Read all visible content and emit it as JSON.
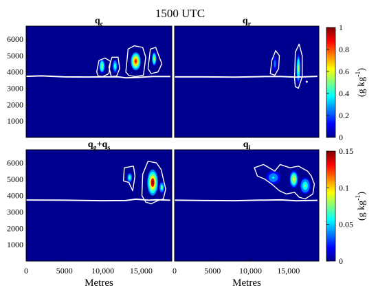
{
  "figure": {
    "title": "1500 UTC"
  },
  "chart_data": [
    {
      "type": "heatmap",
      "panel": "top-left",
      "title_main": "q",
      "title_sub": "c",
      "xlim": [
        0,
        19000
      ],
      "ylim": [
        0,
        6800
      ],
      "xticks": [],
      "yticks": [
        "6000",
        "5000",
        "4000",
        "3000",
        "2000",
        "1000"
      ],
      "ytick_values": [
        6000,
        5000,
        4000,
        3000,
        2000,
        1000
      ],
      "background_color": "#00008f",
      "colorscale": "top",
      "melting_level": [
        [
          0,
          3730
        ],
        [
          2000,
          3760
        ],
        [
          5000,
          3700
        ],
        [
          8000,
          3690
        ],
        [
          10000,
          3700
        ],
        [
          12000,
          3700
        ],
        [
          13000,
          3640
        ],
        [
          14500,
          3660
        ],
        [
          16500,
          3720
        ],
        [
          18800,
          3720
        ]
      ],
      "contours": [
        [
          [
            9200,
            4000
          ],
          [
            9500,
            4700
          ],
          [
            10300,
            4850
          ],
          [
            11000,
            4650
          ],
          [
            10800,
            3900
          ],
          [
            10000,
            3720
          ],
          [
            9400,
            3750
          ]
        ],
        [
          [
            10800,
            4300
          ],
          [
            11200,
            4900
          ],
          [
            12000,
            4900
          ],
          [
            12200,
            4200
          ],
          [
            11800,
            3750
          ],
          [
            11100,
            3720
          ]
        ],
        [
          [
            13000,
            4000
          ],
          [
            13300,
            5400
          ],
          [
            14100,
            5600
          ],
          [
            15200,
            5500
          ],
          [
            15600,
            4900
          ],
          [
            15300,
            3800
          ],
          [
            14300,
            3720
          ],
          [
            13400,
            3780
          ]
        ],
        [
          [
            15900,
            4200
          ],
          [
            16200,
            5400
          ],
          [
            16900,
            5500
          ],
          [
            17300,
            5000
          ],
          [
            17700,
            4500
          ],
          [
            17200,
            4000
          ],
          [
            16300,
            3900
          ]
        ]
      ],
      "blobs": [
        {
          "x": 9900,
          "y": 4350,
          "rx": 400,
          "ry": 450,
          "value": 0.5
        },
        {
          "x": 11600,
          "y": 4350,
          "rx": 320,
          "ry": 400,
          "value": 0.45
        },
        {
          "x": 14300,
          "y": 4650,
          "rx": 650,
          "ry": 550,
          "value": 0.9
        },
        {
          "x": 16700,
          "y": 4800,
          "rx": 320,
          "ry": 450,
          "value": 0.55
        }
      ]
    },
    {
      "type": "heatmap",
      "panel": "top-right",
      "title_main": "q",
      "title_sub": "r",
      "xlim": [
        0,
        19000
      ],
      "ylim": [
        0,
        6800
      ],
      "xticks": [],
      "yticks": [],
      "background_color": "#00008f",
      "colorscale": "top",
      "melting_level": [
        [
          0,
          3700
        ],
        [
          4000,
          3700
        ],
        [
          8000,
          3680
        ],
        [
          12000,
          3720
        ],
        [
          14000,
          3720
        ],
        [
          16000,
          3680
        ],
        [
          18800,
          3730
        ]
      ],
      "contours": [
        [
          [
            12600,
            3900
          ],
          [
            12800,
            4700
          ],
          [
            13300,
            5300
          ],
          [
            13800,
            5000
          ],
          [
            13700,
            4200
          ],
          [
            13200,
            3800
          ]
        ],
        [
          [
            15800,
            3600
          ],
          [
            15900,
            5200
          ],
          [
            16400,
            5700
          ],
          [
            16800,
            5000
          ],
          [
            16800,
            3700
          ],
          [
            16300,
            3000
          ],
          [
            15900,
            3100
          ]
        ]
      ],
      "blobs": [
        {
          "x": 13200,
          "y": 4500,
          "rx": 250,
          "ry": 450,
          "value": 0.2
        },
        {
          "x": 16300,
          "y": 4200,
          "rx": 280,
          "ry": 900,
          "value": 0.55
        }
      ],
      "dots": [
        [
          17400,
          3400
        ]
      ]
    },
    {
      "type": "heatmap",
      "panel": "bottom-left",
      "title_main": "q",
      "title_sub1": "g",
      "title_plus": "+q",
      "title_sub2": "s",
      "xlim": [
        0,
        19000
      ],
      "ylim": [
        0,
        6800
      ],
      "xticks": [
        "0",
        "5000",
        "10,000",
        "15,000"
      ],
      "xtick_values": [
        0,
        5000,
        10000,
        15000
      ],
      "yticks": [
        "6000",
        "5000",
        "4000",
        "3000",
        "2000",
        "1000"
      ],
      "ytick_values": [
        6000,
        5000,
        4000,
        3000,
        2000,
        1000
      ],
      "xlabel": "Metres",
      "background_color": "#00008f",
      "colorscale": "bottom",
      "melting_level": [
        [
          0,
          3730
        ],
        [
          5000,
          3720
        ],
        [
          10000,
          3690
        ],
        [
          13000,
          3700
        ],
        [
          14300,
          3780
        ],
        [
          16000,
          3720
        ],
        [
          17000,
          3750
        ],
        [
          18800,
          3720
        ]
      ],
      "contours": [
        [
          [
            12700,
            4900
          ],
          [
            12800,
            5700
          ],
          [
            14000,
            5800
          ],
          [
            14200,
            5200
          ],
          [
            13900,
            4300
          ],
          [
            13400,
            4800
          ]
        ],
        [
          [
            15100,
            4000
          ],
          [
            15200,
            5300
          ],
          [
            15900,
            6100
          ],
          [
            17000,
            6000
          ],
          [
            17600,
            5600
          ],
          [
            18200,
            4400
          ],
          [
            17900,
            3800
          ],
          [
            17200,
            3700
          ],
          [
            16300,
            3500
          ],
          [
            15600,
            3600
          ]
        ]
      ],
      "blobs": [
        {
          "x": 13500,
          "y": 5100,
          "rx": 350,
          "ry": 300,
          "value": 0.06
        },
        {
          "x": 16500,
          "y": 4800,
          "rx": 700,
          "ry": 800,
          "value": 0.14
        },
        {
          "x": 17700,
          "y": 4500,
          "rx": 350,
          "ry": 350,
          "value": 0.07
        }
      ]
    },
    {
      "type": "heatmap",
      "panel": "bottom-right",
      "title_main": "q",
      "title_sub": "i",
      "xlim": [
        0,
        19000
      ],
      "ylim": [
        0,
        6800
      ],
      "xticks": [
        "0",
        "5000",
        "10,000",
        "15,000"
      ],
      "xtick_values": [
        0,
        5000,
        10000,
        15000
      ],
      "yticks": [],
      "xlabel": "Metres",
      "background_color": "#00008f",
      "colorscale": "bottom",
      "melting_level": [
        [
          0,
          3720
        ],
        [
          4000,
          3700
        ],
        [
          8000,
          3690
        ],
        [
          11000,
          3720
        ],
        [
          14000,
          3740
        ],
        [
          16000,
          3680
        ],
        [
          17500,
          3700
        ],
        [
          18800,
          3710
        ]
      ],
      "contours": [
        [
          [
            10500,
            5700
          ],
          [
            11700,
            5900
          ],
          [
            13200,
            5500
          ],
          [
            13900,
            5900
          ],
          [
            15200,
            5700
          ],
          [
            16300,
            5800
          ],
          [
            17500,
            5500
          ],
          [
            18000,
            5200
          ],
          [
            18400,
            4700
          ],
          [
            18200,
            4100
          ],
          [
            17200,
            3800
          ],
          [
            16400,
            3900
          ],
          [
            15800,
            4200
          ],
          [
            14700,
            4100
          ],
          [
            13800,
            4300
          ],
          [
            12800,
            4700
          ],
          [
            11900,
            5000
          ],
          [
            10900,
            5200
          ]
        ]
      ],
      "blobs": [
        {
          "x": 13000,
          "y": 5100,
          "rx": 900,
          "ry": 400,
          "value": 0.04
        },
        {
          "x": 15700,
          "y": 5000,
          "rx": 600,
          "ry": 550,
          "value": 0.09
        },
        {
          "x": 17200,
          "y": 4600,
          "rx": 700,
          "ry": 500,
          "value": 0.06
        }
      ]
    }
  ],
  "colorbars": {
    "top": {
      "ticks": [
        "1",
        "0.8",
        "0.6",
        "0.4",
        "0.2",
        "0"
      ],
      "tick_values": [
        1,
        0.8,
        0.6,
        0.4,
        0.2,
        0
      ],
      "min": 0,
      "max": 1,
      "label": "(g kg",
      "label_sup": "-1",
      "label_close": ")"
    },
    "bottom": {
      "ticks": [
        "0.15",
        "0.1",
        "0.05",
        "0"
      ],
      "tick_values": [
        0.15,
        0.1,
        0.05,
        0
      ],
      "min": 0,
      "max": 0.15,
      "label": "(g kg",
      "label_sup": "-1",
      "label_close": ")"
    }
  },
  "colormap": [
    "#00008f",
    "#0000ff",
    "#0080ff",
    "#00ffff",
    "#80ff80",
    "#ffff00",
    "#ff8000",
    "#ff0000",
    "#800000"
  ]
}
